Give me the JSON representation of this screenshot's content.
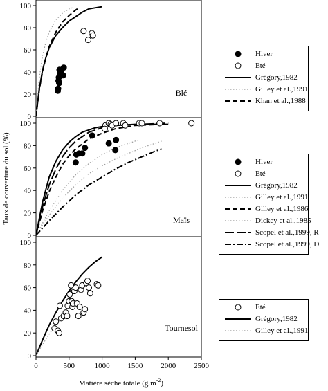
{
  "figure": {
    "ylabel": "Taux de couverture du sol (%)",
    "xlabel_main": "Matière sèche totale (g.m",
    "xlabel_sup": "-2",
    "xlabel_close": ")"
  },
  "chart_data": [
    {
      "type": "scatter",
      "title": "Blé",
      "xlim": [
        0,
        2500
      ],
      "ylim": [
        0,
        100
      ],
      "yticks": [
        0,
        20,
        40,
        60,
        80,
        100
      ],
      "series": [
        {
          "name": "Hiver",
          "kind": "points",
          "marker": "filled",
          "points": [
            [
              330,
              23
            ],
            [
              335,
              25
            ],
            [
              340,
              32
            ],
            [
              345,
              35
            ],
            [
              360,
              38
            ],
            [
              355,
              42
            ],
            [
              410,
              37
            ],
            [
              420,
              44
            ],
            [
              380,
              40
            ],
            [
              350,
              30
            ]
          ]
        },
        {
          "name": "Eté",
          "kind": "points",
          "marker": "open",
          "points": [
            [
              720,
              77
            ],
            [
              790,
              69
            ],
            [
              845,
              75
            ],
            [
              860,
              73
            ]
          ]
        },
        {
          "name": "Grégory,1982",
          "kind": "line",
          "dash": "solid",
          "points": [
            [
              0,
              0
            ],
            [
              50,
              25
            ],
            [
              100,
              42
            ],
            [
              150,
              53
            ],
            [
              200,
              62
            ],
            [
              300,
              73
            ],
            [
              400,
              80
            ],
            [
              500,
              86
            ],
            [
              600,
              90
            ],
            [
              700,
              94
            ],
            [
              800,
              97
            ],
            [
              900,
              98
            ],
            [
              1000,
              99
            ]
          ]
        },
        {
          "name": "Gilley et al.,1991",
          "kind": "line",
          "dash": "dotted",
          "points": [
            [
              0,
              0
            ],
            [
              50,
              35
            ],
            [
              100,
              55
            ],
            [
              150,
              67
            ],
            [
              200,
              76
            ],
            [
              300,
              87
            ],
            [
              400,
              93
            ],
            [
              500,
              97
            ],
            [
              550,
              98
            ]
          ]
        },
        {
          "name": "Khan et al.,1988",
          "kind": "line",
          "dash": "dashed",
          "points": [
            [
              0,
              0
            ],
            [
              50,
              24
            ],
            [
              100,
              41
            ],
            [
              150,
              53
            ],
            [
              200,
              63
            ],
            [
              300,
              76
            ],
            [
              400,
              85
            ],
            [
              500,
              91
            ],
            [
              600,
              96
            ],
            [
              650,
              98
            ]
          ]
        }
      ]
    },
    {
      "type": "scatter",
      "title": "Maïs",
      "xlim": [
        0,
        2500
      ],
      "ylim": [
        0,
        100
      ],
      "yticks": [
        0,
        20,
        40,
        60,
        80,
        100
      ],
      "series": [
        {
          "name": "Hiver",
          "kind": "points",
          "marker": "filled",
          "points": [
            [
              600,
              65
            ],
            [
              610,
              72
            ],
            [
              650,
              73
            ],
            [
              700,
              73
            ],
            [
              740,
              78
            ],
            [
              850,
              89
            ],
            [
              1100,
              82
            ],
            [
              1200,
              76
            ],
            [
              1210,
              85
            ]
          ]
        },
        {
          "name": "Eté",
          "kind": "points",
          "marker": "open",
          "points": [
            [
              1050,
              98
            ],
            [
              1100,
              100
            ],
            [
              1130,
              99
            ],
            [
              1150,
              98
            ],
            [
              1210,
              100
            ],
            [
              1320,
              100
            ],
            [
              1560,
              100
            ],
            [
              1600,
              100
            ],
            [
              1870,
              100
            ],
            [
              2350,
              100
            ],
            [
              1040,
              95
            ],
            [
              1350,
              98
            ]
          ]
        },
        {
          "name": "Grégory,1982",
          "kind": "line",
          "dash": "solid",
          "points": [
            [
              0,
              0
            ],
            [
              100,
              30
            ],
            [
              200,
              52
            ],
            [
              300,
              66
            ],
            [
              400,
              76
            ],
            [
              500,
              83
            ],
            [
              600,
              88
            ],
            [
              700,
              92
            ],
            [
              800,
              94
            ],
            [
              900,
              96
            ],
            [
              1000,
              97
            ],
            [
              1200,
              98
            ],
            [
              1500,
              99
            ],
            [
              2000,
              99
            ]
          ]
        },
        {
          "name": "Gilley et al.,1991",
          "kind": "line",
          "dash": "dotted",
          "points": [
            [
              0,
              0
            ],
            [
              200,
              22
            ],
            [
              400,
              40
            ],
            [
              600,
              54
            ],
            [
              800,
              64
            ],
            [
              1000,
              72
            ],
            [
              1200,
              78
            ],
            [
              1400,
              82
            ],
            [
              1550,
              85
            ]
          ]
        },
        {
          "name": "Gilley et al.,1986",
          "kind": "line",
          "dash": "dashed",
          "points": [
            [
              0,
              0
            ],
            [
              100,
              22
            ],
            [
              200,
              39
            ],
            [
              300,
              52
            ],
            [
              400,
              63
            ],
            [
              500,
              71
            ],
            [
              600,
              77
            ],
            [
              800,
              86
            ],
            [
              1000,
              91
            ],
            [
              1200,
              95
            ],
            [
              1500,
              98
            ],
            [
              1900,
              99
            ]
          ]
        },
        {
          "name": "Dickey et al.,1985",
          "kind": "line",
          "dash": "dotted",
          "points": [
            [
              0,
              0
            ],
            [
              200,
              18
            ],
            [
              400,
              33
            ],
            [
              600,
              45
            ],
            [
              800,
              55
            ],
            [
              1000,
              62
            ],
            [
              1200,
              68
            ],
            [
              1400,
              73
            ],
            [
              1600,
              78
            ],
            [
              1800,
              82
            ],
            [
              1900,
              84
            ]
          ]
        },
        {
          "name": "Scopel et al.,1999, R",
          "kind": "line",
          "dash": "longdash",
          "points": [
            [
              0,
              0
            ],
            [
              100,
              26
            ],
            [
              200,
              45
            ],
            [
              300,
              59
            ],
            [
              400,
              70
            ],
            [
              500,
              78
            ],
            [
              600,
              84
            ],
            [
              800,
              92
            ],
            [
              1000,
              96
            ],
            [
              1200,
              98
            ],
            [
              1600,
              99
            ],
            [
              2000,
              100
            ]
          ]
        },
        {
          "name": "Scopel et al.,1999, D",
          "kind": "line",
          "dash": "dashdot",
          "points": [
            [
              0,
              0
            ],
            [
              200,
              13
            ],
            [
              400,
              25
            ],
            [
              600,
              36
            ],
            [
              800,
              45
            ],
            [
              1000,
              52
            ],
            [
              1200,
              59
            ],
            [
              1400,
              65
            ],
            [
              1600,
              70
            ],
            [
              1800,
              75
            ],
            [
              1900,
              77
            ]
          ]
        }
      ]
    },
    {
      "type": "scatter",
      "title": "Tournesol",
      "xlim": [
        0,
        2500
      ],
      "ylim": [
        0,
        100
      ],
      "yticks": [
        0,
        20,
        40,
        60,
        80,
        100
      ],
      "xticks": [
        0,
        500,
        1000,
        1500,
        2000,
        2500
      ],
      "series": [
        {
          "name": "Eté",
          "kind": "points",
          "marker": "open",
          "points": [
            [
              280,
              24
            ],
            [
              300,
              30
            ],
            [
              330,
              22
            ],
            [
              350,
              20
            ],
            [
              360,
              44
            ],
            [
              380,
              33
            ],
            [
              420,
              35
            ],
            [
              450,
              38
            ],
            [
              470,
              35
            ],
            [
              480,
              44
            ],
            [
              500,
              48
            ],
            [
              510,
              54
            ],
            [
              530,
              62
            ],
            [
              540,
              48
            ],
            [
              550,
              43
            ],
            [
              560,
              46
            ],
            [
              580,
              57
            ],
            [
              600,
              60
            ],
            [
              620,
              46
            ],
            [
              640,
              35
            ],
            [
              660,
              43
            ],
            [
              680,
              58
            ],
            [
              700,
              62
            ],
            [
              720,
              38
            ],
            [
              740,
              41
            ],
            [
              760,
              64
            ],
            [
              780,
              66
            ],
            [
              800,
              60
            ],
            [
              820,
              55
            ],
            [
              920,
              63
            ],
            [
              940,
              62
            ]
          ]
        },
        {
          "name": "Grégory,1982",
          "kind": "line",
          "dash": "solid",
          "points": [
            [
              0,
              0
            ],
            [
              100,
              14
            ],
            [
              200,
              27
            ],
            [
              300,
              38
            ],
            [
              400,
              48
            ],
            [
              500,
              57
            ],
            [
              600,
              65
            ],
            [
              700,
              72
            ],
            [
              800,
              78
            ],
            [
              900,
              83
            ],
            [
              1000,
              87
            ]
          ]
        },
        {
          "name": "Gilley et al.,1991",
          "kind": "line",
          "dash": "dotted",
          "points": [
            [
              0,
              0
            ],
            [
              100,
              10
            ],
            [
              200,
              19
            ],
            [
              300,
              27
            ],
            [
              400,
              34
            ],
            [
              500,
              39
            ]
          ]
        }
      ]
    }
  ],
  "legends": [
    {
      "items": [
        {
          "label": "Hiver",
          "sym": "filled"
        },
        {
          "label": "Eté",
          "sym": "open"
        },
        {
          "label": "Grégory,1982",
          "sym": "solid"
        },
        {
          "label": "Gilley et al.,1991",
          "sym": "dotted"
        },
        {
          "label": "Khan et al.,1988",
          "sym": "dashed"
        }
      ]
    },
    {
      "items": [
        {
          "label": "Hiver",
          "sym": "filled"
        },
        {
          "label": "Eté",
          "sym": "open"
        },
        {
          "label": "Grégory,1982",
          "sym": "solid"
        },
        {
          "label": "Gilley et al.,1991",
          "sym": "dotted"
        },
        {
          "label": "Gilley et al.,1986",
          "sym": "dashed"
        },
        {
          "label": "Dickey et al.,1985",
          "sym": "dotted"
        },
        {
          "label": "Scopel et al.,1999, R",
          "sym": "longdash"
        },
        {
          "label": "Scopel et al.,1999, D",
          "sym": "dashdot"
        }
      ]
    },
    {
      "items": [
        {
          "label": "Eté",
          "sym": "open"
        },
        {
          "label": "Grégory,1982",
          "sym": "solid"
        },
        {
          "label": "Gilley et al.,1991",
          "sym": "dotted"
        }
      ]
    }
  ]
}
